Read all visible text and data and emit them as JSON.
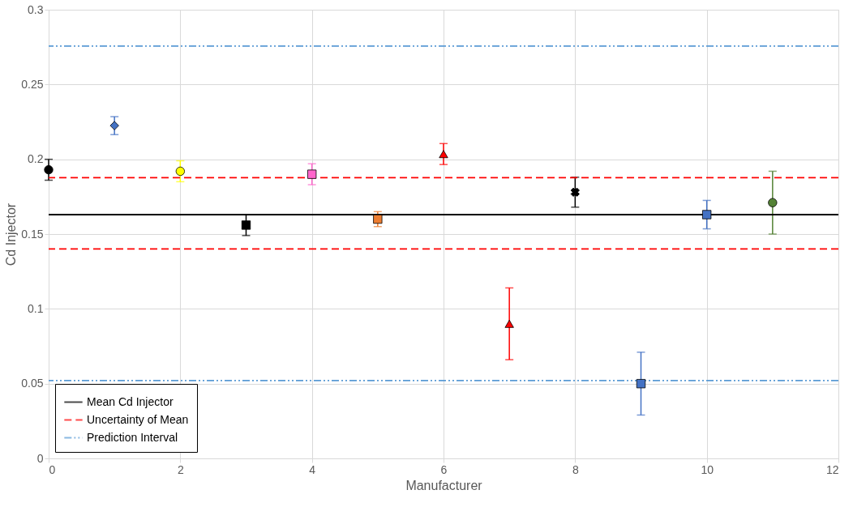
{
  "chart_data": {
    "type": "scatter",
    "xlabel": "Manufacturer",
    "ylabel": "Cd Injector",
    "xlim": [
      0,
      12
    ],
    "xticks": [
      0,
      2,
      4,
      6,
      8,
      10,
      12
    ],
    "ylim": [
      0,
      0.3
    ],
    "yticks": [
      0,
      0.05,
      0.1,
      0.15,
      0.2,
      0.25,
      0.3
    ],
    "grid": true,
    "legend": "bottom left",
    "series": [
      {
        "x": [
          0
        ],
        "values": [
          0.193
        ],
        "errors": [
          0.007
        ],
        "color": "#000000",
        "marker": "circle"
      },
      {
        "x": [
          1
        ],
        "values": [
          0.2225
        ],
        "errors": [
          0.006
        ],
        "color": "#4472c4",
        "marker": "diamond"
      },
      {
        "x": [
          2
        ],
        "values": [
          0.192
        ],
        "errors": [
          0.007
        ],
        "color": "#ffff00",
        "marker": "circle"
      },
      {
        "x": [
          3
        ],
        "values": [
          0.156
        ],
        "errors": [
          0.007
        ],
        "color": "#000000",
        "marker": "square"
      },
      {
        "x": [
          4
        ],
        "values": [
          0.19
        ],
        "errors": [
          0.007
        ],
        "color": "#ff66cc",
        "marker": "square"
      },
      {
        "x": [
          5
        ],
        "values": [
          0.16
        ],
        "errors": [
          0.005
        ],
        "color": "#ed7d31",
        "marker": "square"
      },
      {
        "x": [
          6
        ],
        "values": [
          0.2035
        ],
        "errors": [
          0.007
        ],
        "color": "#ff0000",
        "marker": "triangle"
      },
      {
        "x": [
          7
        ],
        "values": [
          0.09
        ],
        "errors": [
          0.024
        ],
        "color": "#ff0000",
        "marker": "triangle"
      },
      {
        "x": [
          8
        ],
        "values": [
          0.178
        ],
        "errors": [
          0.01
        ],
        "color": "#000000",
        "marker": "cross"
      },
      {
        "x": [
          9
        ],
        "values": [
          0.05
        ],
        "errors": [
          0.021
        ],
        "color": "#4472c4",
        "marker": "square"
      },
      {
        "x": [
          10
        ],
        "values": [
          0.163
        ],
        "errors": [
          0.0095
        ],
        "color": "#4472c4",
        "marker": "square"
      },
      {
        "x": [
          11
        ],
        "values": [
          0.171
        ],
        "errors": [
          0.021
        ],
        "color": "#548235",
        "marker": "circle"
      }
    ],
    "ref_lines": [
      {
        "axis": "y",
        "value": 0.163,
        "label": "Mean Cd Injector",
        "color": "#000000",
        "line_style": "solid"
      },
      {
        "axis": "y",
        "value": 0.1877,
        "label": "Uncertainty of Mean",
        "color": "#ff0000",
        "line_style": "dashed"
      },
      {
        "axis": "y",
        "value": 0.14,
        "label": null,
        "color": "#ff0000",
        "line_style": "dashed"
      },
      {
        "axis": "y",
        "value": 0.2757,
        "label": "Prediction Interval",
        "color": "#5b9bd5",
        "line_style": "dashdot"
      },
      {
        "axis": "y",
        "value": 0.052,
        "label": null,
        "color": "#5b9bd5",
        "line_style": "dashdot"
      }
    ]
  }
}
